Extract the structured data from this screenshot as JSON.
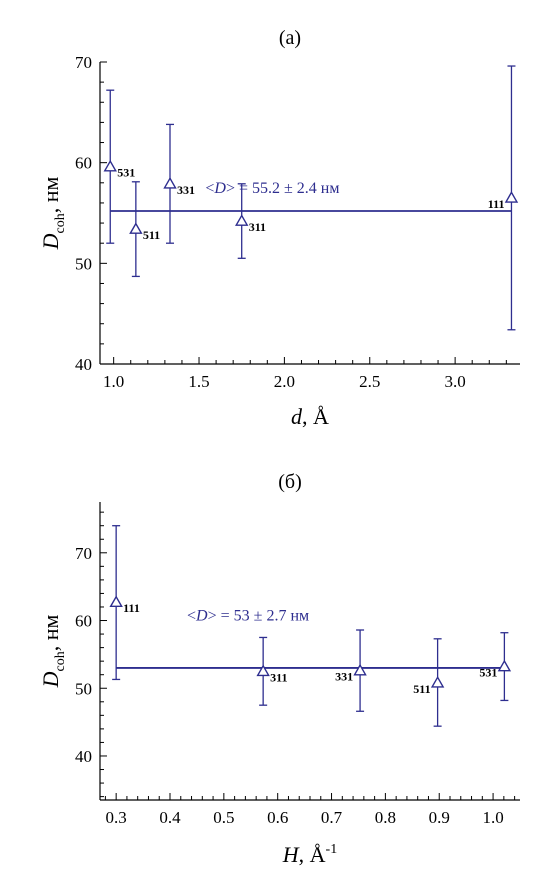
{
  "colors": {
    "series": "#2e2e8f",
    "axes": "#000000"
  },
  "chart_data": [
    {
      "type": "scatter",
      "panel_label": "(а)",
      "xlabel": {
        "main": "d",
        "rest": ", Å",
        "sup": ""
      },
      "ylabel": {
        "main": "D",
        "sub": "coh",
        "rest": ", нм"
      },
      "xlim": [
        0.92,
        3.38
      ],
      "ylim": [
        40,
        70
      ],
      "xticks": [
        1.0,
        1.5,
        2.0,
        2.5,
        3.0
      ],
      "xtick_labels": [
        "1.0",
        "1.5",
        "2.0",
        "2.5",
        "3.0"
      ],
      "yticks": [
        40,
        50,
        60,
        70
      ],
      "ytick_labels": [
        "40",
        "50",
        "60",
        "70"
      ],
      "points": [
        {
          "x": 0.98,
          "y": 59.6,
          "lo": 52.0,
          "hi": 67.2,
          "label": "531",
          "label_pos": "right"
        },
        {
          "x": 1.13,
          "y": 53.4,
          "lo": 48.7,
          "hi": 58.1,
          "label": "511",
          "label_pos": "right"
        },
        {
          "x": 1.33,
          "y": 57.9,
          "lo": 52.0,
          "hi": 63.8,
          "label": "331",
          "label_pos": "right"
        },
        {
          "x": 1.75,
          "y": 54.2,
          "lo": 50.5,
          "hi": 57.9,
          "label": "311",
          "label_pos": "right"
        },
        {
          "x": 3.33,
          "y": 56.5,
          "lo": 43.4,
          "hi": 69.6,
          "label": "111",
          "label_pos": "left"
        }
      ],
      "mean_line": {
        "y": 55.2,
        "x_from": 0.98,
        "x_to": 3.33
      },
      "annotation": {
        "prefix": "<",
        "var": "D",
        "suffix": "> = 55.2 ± 2.4 нм",
        "x": 1.93,
        "y": 57.0
      }
    },
    {
      "type": "scatter",
      "panel_label": "(б)",
      "xlabel": {
        "main": "H",
        "rest": ", Å",
        "sup": "-1"
      },
      "ylabel": {
        "main": "D",
        "sub": "coh",
        "rest": ", нм"
      },
      "xlim": [
        0.27,
        1.05
      ],
      "ylim": [
        33.5,
        77.5
      ],
      "xticks": [
        0.3,
        0.4,
        0.5,
        0.6,
        0.7,
        0.8,
        0.9,
        1.0
      ],
      "xtick_labels": [
        "0.3",
        "0.4",
        "0.5",
        "0.6",
        "0.7",
        "0.8",
        "0.9",
        "1.0"
      ],
      "yticks": [
        40,
        50,
        60,
        70
      ],
      "ytick_labels": [
        "40",
        "50",
        "60",
        "70"
      ],
      "points": [
        {
          "x": 0.3,
          "y": 62.7,
          "lo": 51.3,
          "hi": 74.0,
          "label": "111",
          "label_pos": "right"
        },
        {
          "x": 0.573,
          "y": 52.5,
          "lo": 47.5,
          "hi": 57.5,
          "label": "311",
          "label_pos": "right"
        },
        {
          "x": 0.753,
          "y": 52.6,
          "lo": 46.6,
          "hi": 58.6,
          "label": "331",
          "label_pos": "left"
        },
        {
          "x": 0.897,
          "y": 50.8,
          "lo": 44.4,
          "hi": 57.3,
          "label": "511",
          "label_pos": "left"
        },
        {
          "x": 1.021,
          "y": 53.2,
          "lo": 48.2,
          "hi": 58.2,
          "label": "531",
          "label_pos": "left"
        }
      ],
      "mean_line": {
        "y": 53.0,
        "x_from": 0.3,
        "x_to": 1.021
      },
      "annotation": {
        "prefix": "<",
        "var": "D",
        "suffix": "> = 53 ± 2.7 нм",
        "x": 0.545,
        "y": 60.0
      }
    }
  ]
}
